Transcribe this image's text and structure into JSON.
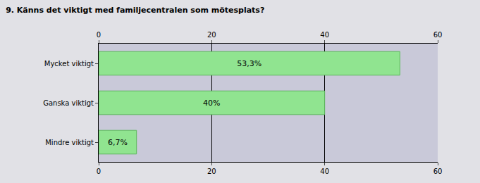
{
  "chart_data": {
    "type": "bar",
    "title": "9. Känns det viktigt med familjecentralen som mötesplats?",
    "orientation": "horizontal",
    "categories": [
      "Mycket viktigt",
      "Ganska viktigt",
      "Mindre viktigt"
    ],
    "values": [
      53.3,
      40,
      6.7
    ],
    "value_labels": [
      "53,3%",
      "40%",
      "6,7%"
    ],
    "data_labels": true,
    "color": "#90e490",
    "xlim": [
      0,
      60
    ],
    "xticks": [
      0,
      20,
      40,
      60
    ],
    "grid": true
  }
}
